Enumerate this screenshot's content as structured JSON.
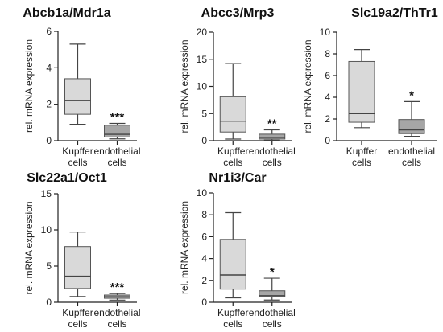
{
  "chart_data": [
    {
      "type": "box",
      "title": "Abcb1a/Mdr1a",
      "ylabel": "rel. mRNA expression",
      "ylim": [
        0,
        6
      ],
      "yticks": [
        "0",
        "2",
        "4",
        "6"
      ],
      "categories": [
        "Kupffer cells",
        "endothelial cells"
      ],
      "category_lines": [
        [
          "Kupffer",
          "cells"
        ],
        [
          "endothelial",
          "cells"
        ]
      ],
      "boxes": [
        {
          "category": "Kupffer cells",
          "min": 0.9,
          "q1": 1.45,
          "median": 2.2,
          "q3": 3.4,
          "max": 5.3,
          "color": "#d9d9d9"
        },
        {
          "category": "endothelial cells",
          "min": 0.1,
          "q1": 0.2,
          "median": 0.35,
          "q3": 0.85,
          "max": 0.95,
          "color": "#a6a6a6"
        }
      ],
      "significance": {
        "category": "endothelial cells",
        "label": "***"
      }
    },
    {
      "type": "box",
      "title": "Abcc3/Mrp3",
      "ylabel": "rel. mRNA expression",
      "ylim": [
        0,
        20
      ],
      "yticks": [
        "0",
        "5",
        "10",
        "15",
        "20"
      ],
      "categories": [
        "Kupffer cells",
        "endothelial cells"
      ],
      "category_lines": [
        [
          "Kupffer",
          "cells"
        ],
        [
          "endothelial",
          "cells"
        ]
      ],
      "boxes": [
        {
          "category": "Kupffer cells",
          "min": 0.3,
          "q1": 1.6,
          "median": 3.6,
          "q3": 8.1,
          "max": 14.2,
          "color": "#d9d9d9"
        },
        {
          "category": "endothelial cells",
          "min": 0.1,
          "q1": 0.3,
          "median": 0.6,
          "q3": 1.2,
          "max": 2.0,
          "color": "#a6a6a6"
        }
      ],
      "significance": {
        "category": "endothelial cells",
        "label": "**"
      }
    },
    {
      "type": "box",
      "title": "Slc19a2/ThTr1",
      "ylabel": "rel. mRNA expression",
      "ylim": [
        0,
        10
      ],
      "yticks": [
        "0",
        "2",
        "4",
        "6",
        "8",
        "10"
      ],
      "categories": [
        "Kupffer cells",
        "endothelial cells"
      ],
      "category_lines": [
        [
          "Kupffer",
          "cells"
        ],
        [
          "endothelial",
          "cells"
        ]
      ],
      "boxes": [
        {
          "category": "Kupffer cells",
          "min": 1.2,
          "q1": 1.7,
          "median": 2.5,
          "q3": 7.3,
          "max": 8.4,
          "color": "#d9d9d9"
        },
        {
          "category": "endothelial cells",
          "min": 0.4,
          "q1": 0.65,
          "median": 1.0,
          "q3": 1.95,
          "max": 3.6,
          "color": "#a6a6a6"
        }
      ],
      "significance": {
        "category": "endothelial cells",
        "label": "*"
      }
    },
    {
      "type": "box",
      "title": "Slc22a1/Oct1",
      "ylabel": "rel. mRNA expression",
      "ylim": [
        0,
        15
      ],
      "yticks": [
        "0",
        "5",
        "10",
        "15"
      ],
      "categories": [
        "Kupffer cells",
        "endothelial cells"
      ],
      "category_lines": [
        [
          "Kupffer",
          "cells"
        ],
        [
          "endothelial",
          "cells"
        ]
      ],
      "boxes": [
        {
          "category": "Kupffer cells",
          "min": 0.8,
          "q1": 1.9,
          "median": 3.6,
          "q3": 7.7,
          "max": 9.7,
          "color": "#d9d9d9"
        },
        {
          "category": "endothelial cells",
          "min": 0.3,
          "q1": 0.55,
          "median": 0.75,
          "q3": 1.0,
          "max": 1.2,
          "color": "#a6a6a6"
        }
      ],
      "significance": {
        "category": "endothelial cells",
        "label": "***"
      }
    },
    {
      "type": "box",
      "title": "Nr1i3/Car",
      "ylabel": "rel. mRNA expression",
      "ylim": [
        0,
        10
      ],
      "yticks": [
        "0",
        "2",
        "4",
        "6",
        "8",
        "10"
      ],
      "categories": [
        "Kupffer cells",
        "endothelial cells"
      ],
      "category_lines": [
        [
          "Kupffer",
          "cells"
        ],
        [
          "endothelial",
          "cells"
        ]
      ],
      "boxes": [
        {
          "category": "Kupffer cells",
          "min": 0.4,
          "q1": 1.2,
          "median": 2.5,
          "q3": 5.75,
          "max": 8.2,
          "color": "#d9d9d9"
        },
        {
          "category": "endothelial cells",
          "min": 0.2,
          "q1": 0.5,
          "median": 0.6,
          "q3": 1.05,
          "max": 2.2,
          "color": "#a6a6a6"
        }
      ],
      "significance": {
        "category": "endothelial cells",
        "label": "*"
      }
    }
  ]
}
